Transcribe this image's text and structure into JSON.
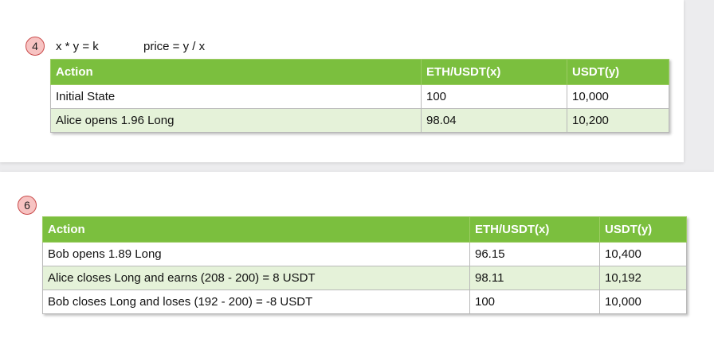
{
  "top": {
    "step": "4",
    "formula_1": "x * y = k",
    "formula_2": "price = y / x",
    "headers": [
      "Action",
      "ETH/USDT(x)",
      "USDT(y)"
    ],
    "rows": [
      [
        "Initial State",
        "100",
        "10,000"
      ],
      [
        "Alice opens 1.96 Long",
        "98.04",
        "10,200"
      ]
    ]
  },
  "bottom": {
    "step": "6",
    "headers": [
      "Action",
      "ETH/USDT(x)",
      "USDT(y)"
    ],
    "rows": [
      [
        "Bob opens 1.89 Long",
        "96.15",
        "10,400"
      ],
      [
        "Alice closes Long and earns (208 - 200) = 8 USDT",
        "98.11",
        "10,192"
      ],
      [
        "Bob closes Long and loses (192 - 200) = -8 USDT",
        "100",
        "10,000"
      ]
    ]
  },
  "colors": {
    "header_green": "#7bbf3e",
    "row_tint": "#e5f2d9",
    "badge_fill": "#f7c3c2",
    "badge_border": "#c94a4a"
  }
}
